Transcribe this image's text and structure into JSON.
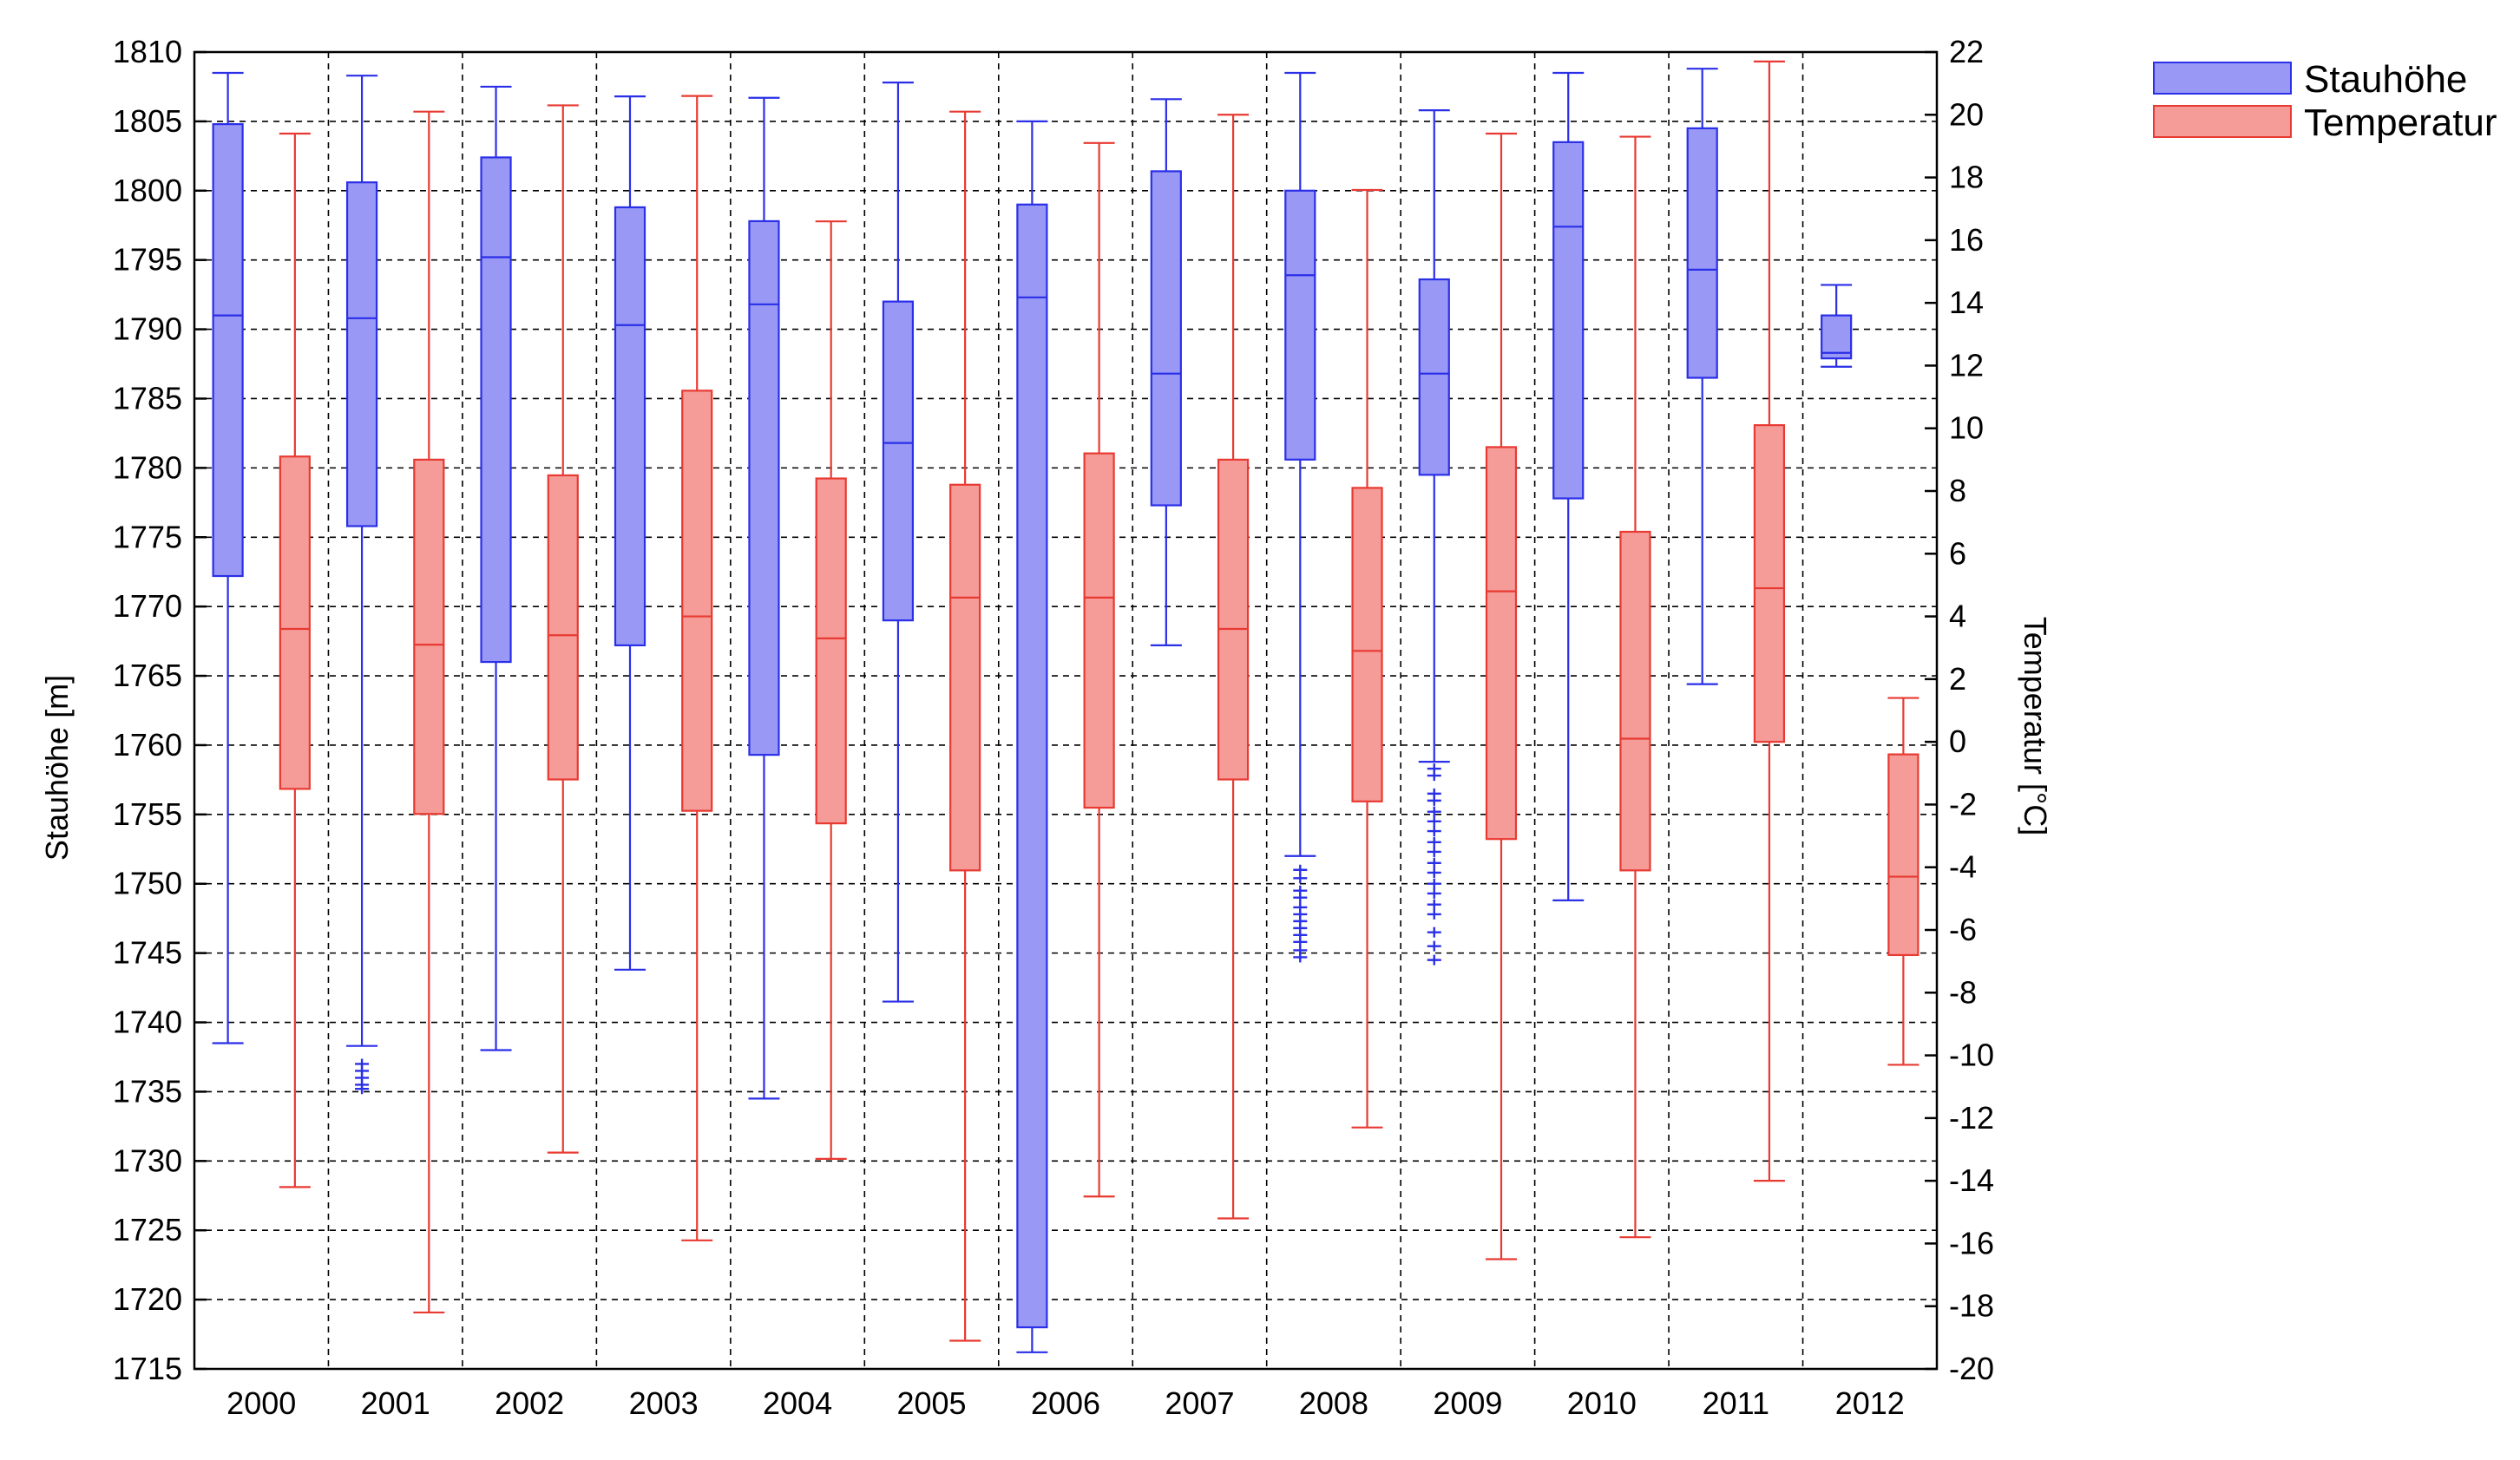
{
  "chart_data": {
    "type": "boxplot",
    "categories": [
      "2000",
      "2001",
      "2002",
      "2003",
      "2004",
      "2005",
      "2006",
      "2007",
      "2008",
      "2009",
      "2010",
      "2011",
      "2012"
    ],
    "y_left": {
      "label": "Stauhöhe [m]",
      "range": [
        1715,
        1810
      ],
      "ticks": [
        "1715",
        "1720",
        "1725",
        "1730",
        "1735",
        "1740",
        "1745",
        "1750",
        "1755",
        "1760",
        "1765",
        "1770",
        "1775",
        "1780",
        "1785",
        "1790",
        "1795",
        "1800",
        "1805",
        "1810"
      ]
    },
    "y_right": {
      "label": "Temperatur [°C]",
      "range": [
        -20,
        22
      ],
      "ticks": [
        "-20",
        "-18",
        "-16",
        "-14",
        "-12",
        "-10",
        "-8",
        "-6",
        "-4",
        "-2",
        "0",
        "2",
        "4",
        "6",
        "8",
        "10",
        "12",
        "14",
        "16",
        "18",
        "20",
        "22"
      ]
    },
    "grid": true,
    "legend_position": "top-right, outside plot",
    "series": [
      {
        "name": "Stauhöhe",
        "axis": "left",
        "color": "#2a2fe8",
        "fill": "#9999f5",
        "boxes": [
          {
            "min": 1738.5,
            "q1": 1772.2,
            "median": 1791.0,
            "q3": 1804.8,
            "max": 1808.5,
            "outliers": []
          },
          {
            "min": 1738.3,
            "q1": 1775.8,
            "median": 1790.8,
            "q3": 1800.6,
            "max": 1808.3,
            "outliers": [
              1737.0,
              1736.5,
              1736.0,
              1735.5,
              1735.2
            ]
          },
          {
            "min": 1738.0,
            "q1": 1766.0,
            "median": 1795.2,
            "q3": 1802.4,
            "max": 1807.5,
            "outliers": []
          },
          {
            "min": 1743.8,
            "q1": 1767.2,
            "median": 1790.3,
            "q3": 1798.8,
            "max": 1806.8,
            "outliers": []
          },
          {
            "min": 1734.5,
            "q1": 1759.3,
            "median": 1791.8,
            "q3": 1797.8,
            "max": 1806.7,
            "outliers": []
          },
          {
            "min": 1741.5,
            "q1": 1769.0,
            "median": 1781.8,
            "q3": 1792.0,
            "max": 1807.8,
            "outliers": []
          },
          {
            "min": 1716.2,
            "q1": 1718.0,
            "median": 1792.3,
            "q3": 1799.0,
            "max": 1805.0,
            "outliers": []
          },
          {
            "min": 1767.2,
            "q1": 1777.3,
            "median": 1786.8,
            "q3": 1801.4,
            "max": 1806.6,
            "outliers": []
          },
          {
            "min": 1752.0,
            "q1": 1780.6,
            "median": 1793.9,
            "q3": 1800.0,
            "max": 1808.5,
            "outliers": [
              1751.0,
              1750.4,
              1749.5,
              1749.0,
              1748.3,
              1747.8,
              1747.3,
              1746.8,
              1746.3,
              1745.8,
              1745.2,
              1744.7
            ]
          },
          {
            "min": 1758.8,
            "q1": 1779.5,
            "median": 1786.8,
            "q3": 1793.6,
            "max": 1805.8,
            "outliers": [
              1758.3,
              1757.8,
              1756.5,
              1756.0,
              1755.2,
              1754.5,
              1753.8,
              1753.0,
              1752.3,
              1751.5,
              1750.8,
              1750.0,
              1749.3,
              1748.5,
              1747.8,
              1746.5,
              1745.5,
              1744.5
            ]
          },
          {
            "min": 1748.8,
            "q1": 1777.8,
            "median": 1797.4,
            "q3": 1803.5,
            "max": 1808.5,
            "outliers": []
          },
          {
            "min": 1764.4,
            "q1": 1786.5,
            "median": 1794.3,
            "q3": 1804.5,
            "max": 1808.8,
            "outliers": []
          },
          {
            "min": 1787.3,
            "q1": 1787.9,
            "median": 1788.3,
            "q3": 1791.0,
            "max": 1793.2,
            "outliers": []
          }
        ]
      },
      {
        "name": "Temperatur",
        "axis": "right",
        "color": "#e83a32",
        "fill": "#f59b98",
        "boxes": [
          {
            "min": -14.2,
            "q1": -1.5,
            "median": 3.6,
            "q3": 9.1,
            "max": 19.4,
            "outliers": []
          },
          {
            "min": -18.2,
            "q1": -2.3,
            "median": 3.1,
            "q3": 9.0,
            "max": 20.1,
            "outliers": []
          },
          {
            "min": -13.1,
            "q1": -1.2,
            "median": 3.4,
            "q3": 8.5,
            "max": 20.3,
            "outliers": []
          },
          {
            "min": -15.9,
            "q1": -2.2,
            "median": 4.0,
            "q3": 11.2,
            "max": 20.6,
            "outliers": []
          },
          {
            "min": -13.3,
            "q1": -2.6,
            "median": 3.3,
            "q3": 8.4,
            "max": 16.6,
            "outliers": []
          },
          {
            "min": -19.1,
            "q1": -4.1,
            "median": 4.6,
            "q3": 8.2,
            "max": 20.1,
            "outliers": []
          },
          {
            "min": -14.5,
            "q1": -2.1,
            "median": 4.6,
            "q3": 9.2,
            "max": 19.1,
            "outliers": []
          },
          {
            "min": -15.2,
            "q1": -1.2,
            "median": 3.6,
            "q3": 9.0,
            "max": 20.0,
            "outliers": []
          },
          {
            "min": -12.3,
            "q1": -1.9,
            "median": 2.9,
            "q3": 8.1,
            "max": 17.6,
            "outliers": []
          },
          {
            "min": -16.5,
            "q1": -3.1,
            "median": 4.8,
            "q3": 9.4,
            "max": 19.4,
            "outliers": []
          },
          {
            "min": -15.8,
            "q1": -4.1,
            "median": 0.1,
            "q3": 6.7,
            "max": 19.3,
            "outliers": []
          },
          {
            "min": -14.0,
            "q1": 0.0,
            "median": 4.9,
            "q3": 10.1,
            "max": 21.7,
            "outliers": []
          },
          {
            "min": -10.3,
            "q1": -6.8,
            "median": -4.3,
            "q3": -0.4,
            "max": 1.4,
            "outliers": []
          }
        ]
      }
    ]
  }
}
